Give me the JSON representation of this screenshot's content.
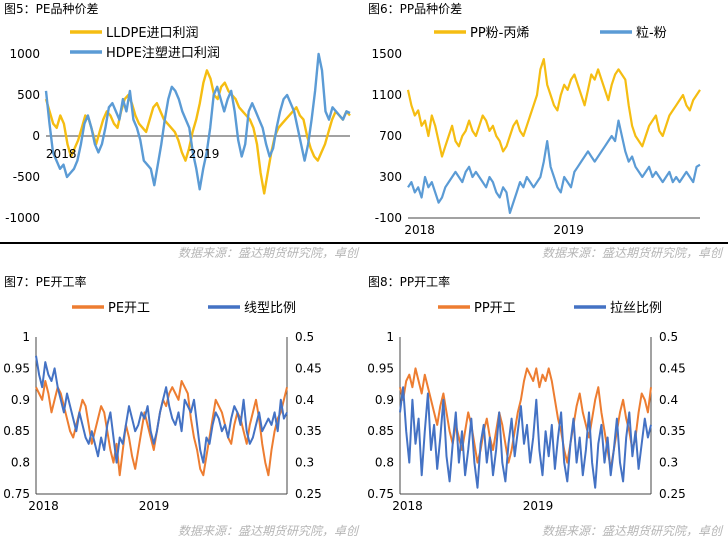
{
  "source_text": "数据来源：盛达期货研究院，卓创",
  "colors": {
    "orange": "#f5bd12",
    "blue": "#5b9bd5",
    "deep_orange": "#ed7d31",
    "navy": "#4472c4"
  },
  "chart_data": [
    {
      "id": "c5",
      "type": "line",
      "title": "图5：PE品种价差",
      "xlabels": [
        "2018",
        "2019"
      ],
      "ylim": [
        -1000,
        1000
      ],
      "yticks": [
        -1000,
        -500,
        0,
        500,
        1000
      ],
      "grid": false,
      "legend": "top-center",
      "series": [
        {
          "name": "LLDPE进口利润",
          "color": "#f5bd12",
          "values": [
            450,
            300,
            150,
            100,
            250,
            150,
            -100,
            -250,
            -150,
            -50,
            100,
            250,
            200,
            50,
            -100,
            50,
            200,
            300,
            250,
            150,
            100,
            300,
            450,
            500,
            400,
            250,
            150,
            100,
            50,
            200,
            350,
            400,
            300,
            200,
            150,
            100,
            50,
            -50,
            -200,
            -300,
            -150,
            50,
            200,
            400,
            650,
            800,
            700,
            500,
            450,
            600,
            650,
            550,
            500,
            450,
            350,
            300,
            250,
            200,
            100,
            -100,
            -450,
            -700,
            -450,
            -200,
            0,
            100,
            150,
            200,
            250,
            300,
            350,
            250,
            200,
            0,
            -150,
            -250,
            -300,
            -200,
            -100,
            50,
            200,
            300,
            250,
            200,
            300,
            250
          ]
        },
        {
          "name": "HDPE注塑进口利润",
          "color": "#5b9bd5",
          "values": [
            550,
            150,
            -200,
            -300,
            -400,
            -350,
            -500,
            -450,
            -400,
            -300,
            -100,
            150,
            250,
            100,
            -100,
            -200,
            -100,
            100,
            350,
            400,
            300,
            200,
            450,
            300,
            550,
            200,
            100,
            -50,
            -300,
            -350,
            -400,
            -600,
            -350,
            -100,
            200,
            450,
            600,
            550,
            450,
            300,
            200,
            100,
            -200,
            -400,
            -650,
            -400,
            -200,
            100,
            500,
            600,
            450,
            300,
            450,
            550,
            300,
            -50,
            -250,
            -100,
            300,
            400,
            300,
            200,
            100,
            -100,
            -250,
            -150,
            100,
            300,
            450,
            500,
            400,
            300,
            100,
            -100,
            -300,
            -100,
            200,
            550,
            1000,
            800,
            300,
            200,
            350,
            300,
            250,
            200,
            300,
            280
          ]
        }
      ]
    },
    {
      "id": "c6",
      "type": "line",
      "title": "图6：PP品种价差",
      "xlabels": [
        "2018",
        "2019"
      ],
      "ylim": [
        -100,
        1500
      ],
      "yticks": [
        -100,
        300,
        700,
        1100,
        1500
      ],
      "grid": false,
      "legend": "top-center",
      "series": [
        {
          "name": "PP粉-丙烯",
          "color": "#f5bd12",
          "values": [
            1150,
            1000,
            900,
            950,
            800,
            850,
            700,
            900,
            800,
            650,
            500,
            600,
            700,
            800,
            650,
            600,
            700,
            750,
            850,
            750,
            700,
            800,
            900,
            850,
            750,
            800,
            700,
            650,
            550,
            600,
            700,
            800,
            850,
            750,
            700,
            800,
            900,
            1000,
            1100,
            1350,
            1450,
            1200,
            1100,
            1000,
            950,
            1100,
            1200,
            1150,
            1250,
            1300,
            1200,
            1100,
            1000,
            1150,
            1300,
            1250,
            1350,
            1250,
            1150,
            1050,
            1200,
            1300,
            1350,
            1300,
            1250,
            1000,
            800,
            700,
            650,
            600,
            700,
            800,
            850,
            900,
            750,
            700,
            800,
            900,
            950,
            1000,
            1050,
            1100,
            1000,
            950,
            1050,
            1100,
            1150
          ]
        },
        {
          "name": "粒-粉",
          "color": "#5b9bd5",
          "values": [
            200,
            250,
            150,
            200,
            100,
            300,
            200,
            250,
            150,
            50,
            100,
            200,
            250,
            300,
            350,
            300,
            250,
            350,
            400,
            300,
            350,
            300,
            250,
            200,
            300,
            250,
            150,
            100,
            200,
            150,
            -50,
            50,
            150,
            250,
            200,
            300,
            250,
            200,
            250,
            300,
            450,
            650,
            400,
            300,
            200,
            150,
            300,
            250,
            200,
            350,
            400,
            450,
            500,
            550,
            500,
            450,
            500,
            550,
            600,
            650,
            700,
            650,
            850,
            700,
            550,
            450,
            500,
            400,
            350,
            300,
            350,
            400,
            300,
            350,
            300,
            250,
            300,
            350,
            250,
            300,
            250,
            300,
            350,
            300,
            250,
            400,
            420
          ]
        }
      ]
    },
    {
      "id": "c7",
      "type": "line",
      "title": "图7：PE开工率",
      "xlabels": [
        "2018",
        "2019"
      ],
      "ylim": [
        0.75,
        1
      ],
      "yticks": [
        0.75,
        0.8,
        0.85,
        0.9,
        0.95,
        1
      ],
      "ylim_right": [
        0.25,
        0.5
      ],
      "yticks_right": [
        0.25,
        0.3,
        0.35,
        0.4,
        0.45,
        0.5
      ],
      "grid": false,
      "legend": "top-center",
      "series": [
        {
          "name": "PE开工",
          "color": "#ed7d31",
          "axis": "left",
          "values": [
            0.92,
            0.91,
            0.9,
            0.93,
            0.91,
            0.88,
            0.9,
            0.92,
            0.91,
            0.89,
            0.87,
            0.85,
            0.84,
            0.86,
            0.88,
            0.9,
            0.89,
            0.86,
            0.83,
            0.85,
            0.87,
            0.89,
            0.88,
            0.85,
            0.82,
            0.8,
            0.83,
            0.78,
            0.82,
            0.86,
            0.84,
            0.81,
            0.79,
            0.82,
            0.85,
            0.88,
            0.86,
            0.84,
            0.82,
            0.85,
            0.88,
            0.9,
            0.89,
            0.91,
            0.92,
            0.91,
            0.9,
            0.93,
            0.92,
            0.91,
            0.87,
            0.84,
            0.82,
            0.79,
            0.78,
            0.81,
            0.84,
            0.87,
            0.9,
            0.89,
            0.88,
            0.86,
            0.84,
            0.83,
            0.86,
            0.88,
            0.87,
            0.85,
            0.83,
            0.86,
            0.88,
            0.9,
            0.87,
            0.83,
            0.8,
            0.78,
            0.82,
            0.85,
            0.87,
            0.88,
            0.9,
            0.92
          ]
        },
        {
          "name": "线型比例",
          "color": "#4472c4",
          "axis": "right",
          "values": [
            0.47,
            0.44,
            0.42,
            0.46,
            0.44,
            0.43,
            0.45,
            0.42,
            0.4,
            0.38,
            0.41,
            0.39,
            0.37,
            0.35,
            0.38,
            0.36,
            0.34,
            0.33,
            0.35,
            0.33,
            0.31,
            0.34,
            0.32,
            0.36,
            0.38,
            0.34,
            0.3,
            0.34,
            0.33,
            0.36,
            0.39,
            0.37,
            0.35,
            0.36,
            0.38,
            0.37,
            0.39,
            0.35,
            0.33,
            0.35,
            0.38,
            0.4,
            0.42,
            0.39,
            0.37,
            0.36,
            0.38,
            0.35,
            0.4,
            0.39,
            0.38,
            0.4,
            0.36,
            0.32,
            0.3,
            0.34,
            0.33,
            0.36,
            0.38,
            0.37,
            0.35,
            0.36,
            0.34,
            0.37,
            0.39,
            0.38,
            0.36,
            0.4,
            0.35,
            0.33,
            0.34,
            0.36,
            0.38,
            0.35,
            0.36,
            0.37,
            0.36,
            0.38,
            0.35,
            0.4,
            0.37,
            0.38
          ]
        }
      ]
    },
    {
      "id": "c8",
      "type": "line",
      "title": "图8：PP开工率",
      "xlabels": [
        "2018",
        "2019"
      ],
      "ylim": [
        0.75,
        1
      ],
      "yticks": [
        0.75,
        0.8,
        0.85,
        0.9,
        0.95,
        1
      ],
      "ylim_right": [
        0.25,
        0.5
      ],
      "yticks_right": [
        0.25,
        0.3,
        0.35,
        0.4,
        0.45,
        0.5
      ],
      "grid": false,
      "legend": "top-center",
      "series": [
        {
          "name": "PP开工",
          "color": "#ed7d31",
          "axis": "left",
          "values": [
            0.92,
            0.9,
            0.93,
            0.94,
            0.92,
            0.95,
            0.93,
            0.91,
            0.94,
            0.92,
            0.9,
            0.88,
            0.86,
            0.89,
            0.91,
            0.88,
            0.85,
            0.83,
            0.86,
            0.84,
            0.82,
            0.85,
            0.88,
            0.86,
            0.83,
            0.8,
            0.82,
            0.85,
            0.87,
            0.84,
            0.82,
            0.85,
            0.88,
            0.86,
            0.83,
            0.8,
            0.82,
            0.85,
            0.88,
            0.9,
            0.93,
            0.95,
            0.94,
            0.93,
            0.95,
            0.92,
            0.94,
            0.93,
            0.95,
            0.93,
            0.9,
            0.87,
            0.85,
            0.82,
            0.8,
            0.83,
            0.86,
            0.89,
            0.91,
            0.88,
            0.86,
            0.84,
            0.87,
            0.9,
            0.92,
            0.88,
            0.85,
            0.82,
            0.79,
            0.82,
            0.85,
            0.88,
            0.9,
            0.87,
            0.85,
            0.82,
            0.84,
            0.88,
            0.91,
            0.9,
            0.88,
            0.92
          ]
        },
        {
          "name": "拉丝比例",
          "color": "#4472c4",
          "axis": "right",
          "values": [
            0.38,
            0.42,
            0.35,
            0.3,
            0.4,
            0.33,
            0.37,
            0.28,
            0.35,
            0.41,
            0.32,
            0.36,
            0.29,
            0.34,
            0.4,
            0.31,
            0.27,
            0.33,
            0.38,
            0.3,
            0.35,
            0.28,
            0.32,
            0.37,
            0.3,
            0.26,
            0.33,
            0.36,
            0.3,
            0.34,
            0.28,
            0.32,
            0.38,
            0.3,
            0.27,
            0.33,
            0.37,
            0.31,
            0.35,
            0.39,
            0.33,
            0.36,
            0.3,
            0.34,
            0.4,
            0.32,
            0.28,
            0.35,
            0.31,
            0.36,
            0.29,
            0.34,
            0.38,
            0.3,
            0.27,
            0.33,
            0.37,
            0.3,
            0.34,
            0.28,
            0.32,
            0.38,
            0.3,
            0.26,
            0.33,
            0.36,
            0.3,
            0.34,
            0.28,
            0.32,
            0.37,
            0.3,
            0.27,
            0.34,
            0.38,
            0.31,
            0.35,
            0.29,
            0.33,
            0.37,
            0.34,
            0.36
          ]
        }
      ]
    }
  ]
}
